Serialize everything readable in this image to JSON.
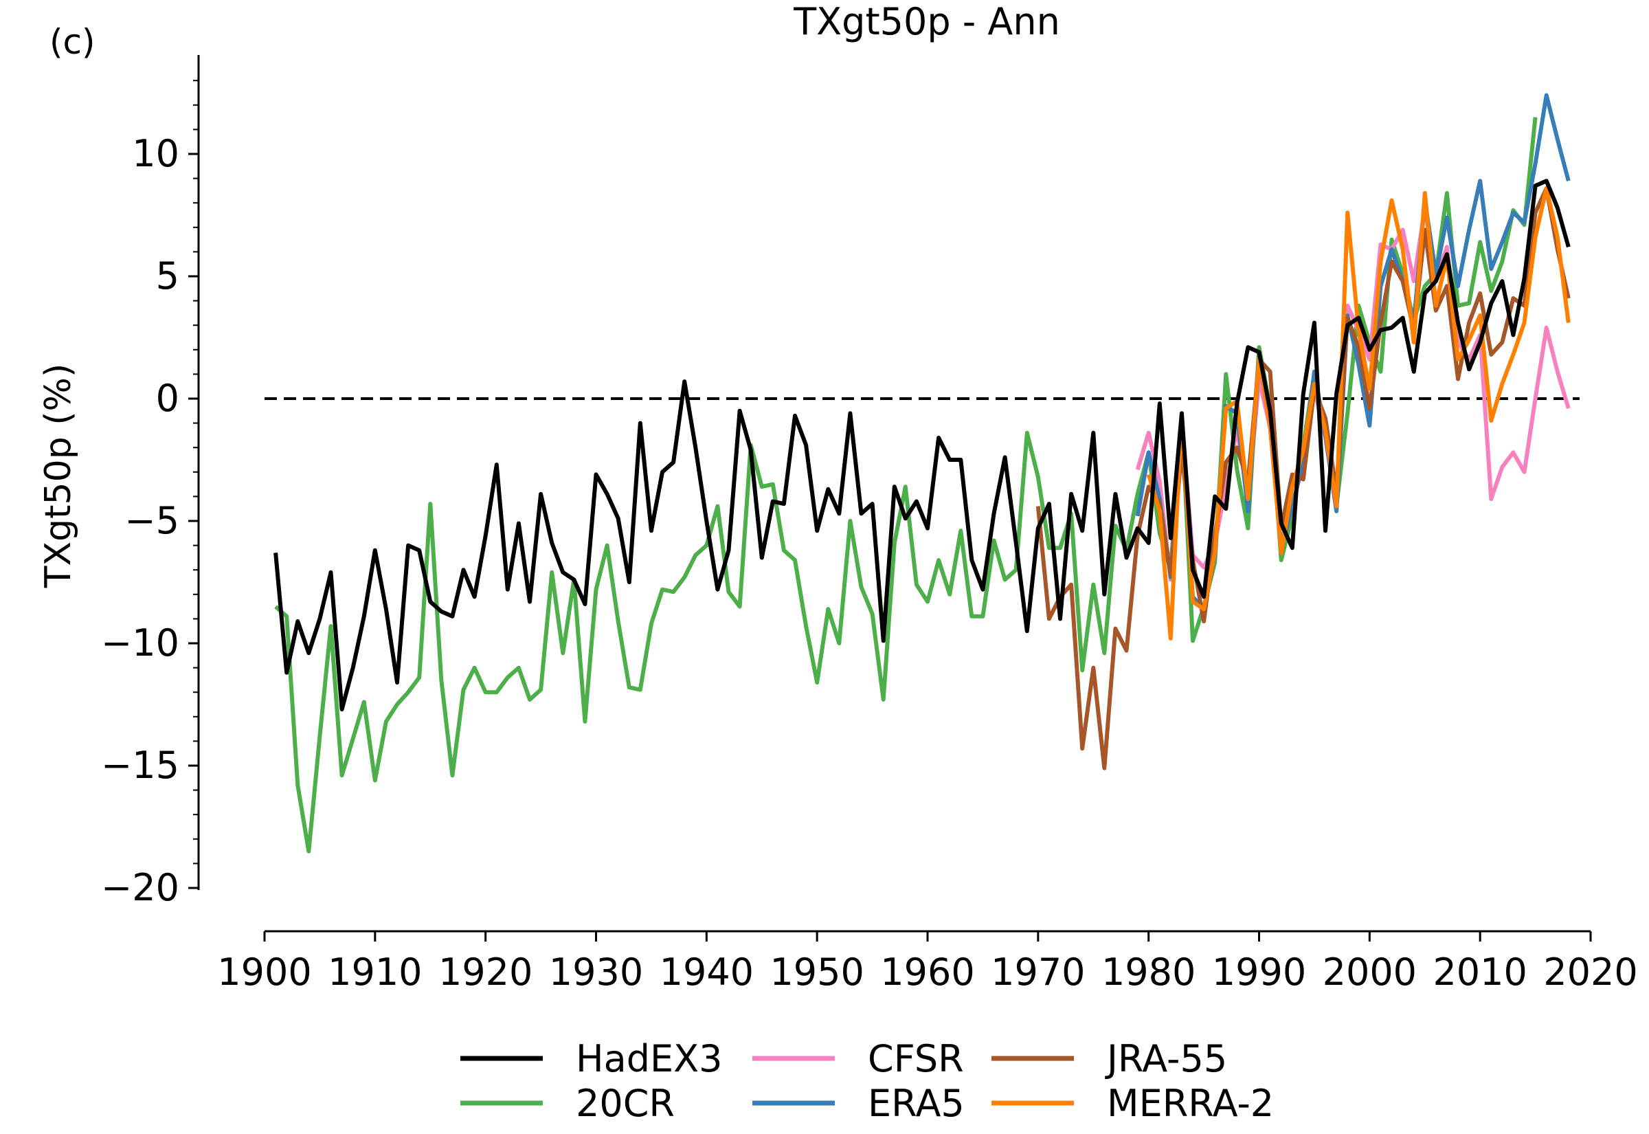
{
  "panel_label": "(c)",
  "chart_data": {
    "type": "line",
    "title": "TXgt50p - Ann",
    "xlabel": "",
    "ylabel": "TXgt50p (%)",
    "xlim": [
      1900,
      2020
    ],
    "ylim": [
      -22,
      14
    ],
    "xticks": [
      1900,
      1910,
      1920,
      1930,
      1940,
      1950,
      1960,
      1970,
      1980,
      1990,
      2000,
      2010,
      2020
    ],
    "yticks": [
      -20,
      -15,
      -10,
      -5,
      0,
      5,
      10
    ],
    "ytick_labels": [
      "−20",
      "−15",
      "−10",
      "−5",
      "0",
      "5",
      "10"
    ],
    "reference_line": 0,
    "legend_position": "bottom",
    "series": [
      {
        "name": "20CR",
        "color": "#4daf4a",
        "x": [
          1901,
          1902,
          1903,
          1904,
          1905,
          1906,
          1907,
          1908,
          1909,
          1910,
          1911,
          1912,
          1913,
          1914,
          1915,
          1916,
          1917,
          1918,
          1919,
          1920,
          1921,
          1922,
          1923,
          1924,
          1925,
          1926,
          1927,
          1928,
          1929,
          1930,
          1931,
          1932,
          1933,
          1934,
          1935,
          1936,
          1937,
          1938,
          1939,
          1940,
          1941,
          1942,
          1943,
          1944,
          1945,
          1946,
          1947,
          1948,
          1949,
          1950,
          1951,
          1952,
          1953,
          1954,
          1955,
          1956,
          1957,
          1958,
          1959,
          1960,
          1961,
          1962,
          1963,
          1964,
          1965,
          1966,
          1967,
          1968,
          1969,
          1970,
          1971,
          1972,
          1973,
          1974,
          1975,
          1976,
          1977,
          1978,
          1979,
          1980,
          1981,
          1982,
          1983,
          1984,
          1985,
          1986,
          1987,
          1988,
          1989,
          1990,
          1991,
          1992,
          1993,
          1994,
          1995,
          1996,
          1997,
          1998,
          1999,
          2000,
          2001,
          2002,
          2003,
          2004,
          2005,
          2006,
          2007,
          2008,
          2009,
          2010,
          2011,
          2012,
          2013,
          2014,
          2015
        ],
        "y": [
          -8.5,
          -8.9,
          -15.8,
          -18.5,
          -13.8,
          -9.3,
          -15.4,
          -13.9,
          -12.4,
          -15.6,
          -13.2,
          -12.5,
          -12,
          -11.4,
          -4.3,
          -11.5,
          -15.4,
          -11.9,
          -11,
          -12,
          -12,
          -11.4,
          -11,
          -12.3,
          -11.9,
          -7.1,
          -10.4,
          -7.4,
          -13.2,
          -7.8,
          -6,
          -9.1,
          -11.8,
          -11.9,
          -9.2,
          -7.8,
          -7.9,
          -7.3,
          -6.4,
          -6,
          -4.4,
          -7.9,
          -8.5,
          -1.9,
          -3.6,
          -3.5,
          -6.2,
          -6.6,
          -9.3,
          -11.6,
          -8.6,
          -10,
          -5,
          -7.7,
          -8.8,
          -12.3,
          -5.9,
          -3.6,
          -7.6,
          -8.3,
          -6.6,
          -8,
          -5.4,
          -8.9,
          -8.9,
          -5.8,
          -7.4,
          -7,
          -1.4,
          -3.2,
          -6.1,
          -6.1,
          -4.7,
          -11.1,
          -7.6,
          -10.4,
          -5.2,
          -6.2,
          -3.9,
          -2.2,
          -5.5,
          -7,
          -0.7,
          -9.9,
          -8.5,
          -6.7,
          1,
          -2.9,
          -5.3,
          2.1,
          -0.4,
          -6.6,
          -4.8,
          -1.9,
          1,
          -1.4,
          -4.4,
          -0.6,
          3.8,
          2.3,
          1.1,
          6.5,
          5.1,
          3.2,
          4.6,
          5.1,
          8.4,
          3.8,
          3.9,
          6.4,
          4.4,
          5.6,
          7.7,
          7.1,
          11.5
        ]
      },
      {
        "name": "CFSR",
        "color": "#f781bf",
        "x": [
          1979,
          1980,
          1981,
          1982,
          1983,
          1984,
          1985,
          1986,
          1987,
          1988,
          1989,
          1990,
          1991,
          1992,
          1993,
          1994,
          1995,
          1996,
          1997,
          1998,
          1999,
          2000,
          2001,
          2002,
          2003,
          2004,
          2005,
          2006,
          2007,
          2008,
          2009,
          2010,
          2011,
          2012,
          2013,
          2014,
          2015,
          2016,
          2017,
          2018
        ],
        "y": [
          -2.9,
          -1.4,
          -3.4,
          -7.4,
          -0.8,
          -6.4,
          -6.9,
          -5.9,
          -3.6,
          -1.2,
          -4.2,
          0.8,
          -1.2,
          -6.1,
          -3.6,
          -2.2,
          0.4,
          -1.6,
          -4.4,
          3.8,
          2.8,
          1.6,
          6.3,
          6.1,
          6.9,
          4.8,
          7.8,
          4.8,
          6.2,
          2.3,
          1.6,
          2.6,
          -4.1,
          -2.8,
          -2.2,
          -3,
          0,
          2.9,
          1.1,
          -0.4
        ]
      },
      {
        "name": "ERA5",
        "color": "#377eb8",
        "x": [
          1979,
          1980,
          1981,
          1982,
          1983,
          1984,
          1985,
          1986,
          1987,
          1988,
          1989,
          1990,
          1991,
          1992,
          1993,
          1994,
          1995,
          1996,
          1997,
          1998,
          1999,
          2000,
          2001,
          2002,
          2003,
          2004,
          2005,
          2006,
          2007,
          2008,
          2009,
          2010,
          2011,
          2012,
          2013,
          2014,
          2015,
          2016,
          2017,
          2018
        ],
        "y": [
          -4.8,
          -2.2,
          -4.1,
          -7.3,
          -1.2,
          -8.1,
          -8.6,
          -6.4,
          -0.3,
          -0.6,
          -4.6,
          1.6,
          -1.1,
          -6.1,
          -4.4,
          -2.6,
          1.1,
          -1.5,
          -4.6,
          3.4,
          1.4,
          -1.1,
          4.6,
          6.1,
          4.8,
          3.1,
          8.1,
          5.1,
          7.4,
          4.6,
          6.9,
          8.9,
          5.3,
          6.4,
          7.6,
          7.2,
          9.6,
          12.4,
          10.6,
          8.9
        ]
      },
      {
        "name": "JRA-55",
        "color": "#a65628",
        "x": [
          1970,
          1971,
          1972,
          1973,
          1974,
          1975,
          1976,
          1977,
          1978,
          1979,
          1980,
          1981,
          1982,
          1983,
          1984,
          1985,
          1986,
          1987,
          1988,
          1989,
          1990,
          1991,
          1992,
          1993,
          1994,
          1995,
          1996,
          1997,
          1998,
          1999,
          2000,
          2001,
          2002,
          2003,
          2004,
          2005,
          2006,
          2007,
          2008,
          2009,
          2010,
          2011,
          2012,
          2013,
          2014,
          2015,
          2016,
          2017,
          2018
        ],
        "y": [
          -4.4,
          -9,
          -8.1,
          -7.6,
          -14.3,
          -11,
          -15.1,
          -9.4,
          -10.3,
          -5.6,
          -3.6,
          -4.3,
          -7.2,
          -2.1,
          -6.6,
          -9.1,
          -5.6,
          -2.6,
          -2,
          -3.4,
          1.6,
          1.1,
          -5.3,
          -3.1,
          -3.3,
          0.4,
          -0.8,
          -3.8,
          3.3,
          2.1,
          -0.4,
          3.1,
          5.6,
          4.8,
          2.8,
          6.9,
          3.6,
          4.6,
          0.8,
          3.1,
          4.3,
          1.8,
          2.3,
          4.1,
          3.8,
          7.6,
          8.6,
          6.1,
          4.1
        ]
      },
      {
        "name": "MERRA-2",
        "color": "#ff7f00",
        "x": [
          1980,
          1981,
          1982,
          1983,
          1984,
          1985,
          1986,
          1987,
          1988,
          1989,
          1990,
          1991,
          1992,
          1993,
          1994,
          1995,
          1996,
          1997,
          1998,
          1999,
          2000,
          2001,
          2002,
          2003,
          2004,
          2005,
          2006,
          2007,
          2008,
          2009,
          2010,
          2011,
          2012,
          2013,
          2014,
          2015,
          2016,
          2017,
          2018
        ],
        "y": [
          -3.1,
          -4.6,
          -9.8,
          -0.6,
          -8.3,
          -8.6,
          -6.3,
          -0.4,
          -0.1,
          -4.1,
          1.6,
          -1.1,
          -6.3,
          -3.6,
          -2.1,
          0.6,
          -1.3,
          -4.4,
          7.6,
          2.8,
          0.4,
          5.6,
          8.1,
          6.1,
          2.3,
          8.4,
          3.8,
          5.8,
          1.6,
          2.4,
          3.4,
          -0.9,
          0.6,
          1.8,
          3.1,
          6.6,
          8.6,
          6.6,
          3.1
        ]
      },
      {
        "name": "HadEX3",
        "color": "#000000",
        "x": [
          1901,
          1902,
          1903,
          1904,
          1905,
          1906,
          1907,
          1908,
          1909,
          1910,
          1911,
          1912,
          1913,
          1914,
          1915,
          1916,
          1917,
          1918,
          1919,
          1920,
          1921,
          1922,
          1923,
          1924,
          1925,
          1926,
          1927,
          1928,
          1929,
          1930,
          1931,
          1932,
          1933,
          1934,
          1935,
          1936,
          1937,
          1938,
          1939,
          1940,
          1941,
          1942,
          1943,
          1944,
          1945,
          1946,
          1947,
          1948,
          1949,
          1950,
          1951,
          1952,
          1953,
          1954,
          1955,
          1956,
          1957,
          1958,
          1959,
          1960,
          1961,
          1962,
          1963,
          1964,
          1965,
          1966,
          1967,
          1968,
          1969,
          1970,
          1971,
          1972,
          1973,
          1974,
          1975,
          1976,
          1977,
          1978,
          1979,
          1980,
          1981,
          1982,
          1983,
          1984,
          1985,
          1986,
          1987,
          1988,
          1989,
          1990,
          1991,
          1992,
          1993,
          1994,
          1995,
          1996,
          1997,
          1998,
          1999,
          2000,
          2001,
          2002,
          2003,
          2004,
          2005,
          2006,
          2007,
          2008,
          2009,
          2010,
          2011,
          2012,
          2013,
          2014,
          2015,
          2016,
          2017,
          2018
        ],
        "y": [
          -6.3,
          -11.2,
          -9.1,
          -10.4,
          -9,
          -7.1,
          -12.7,
          -11,
          -8.9,
          -6.2,
          -8.6,
          -11.6,
          -6,
          -6.2,
          -8.3,
          -8.7,
          -8.9,
          -7,
          -8.1,
          -5.6,
          -2.7,
          -7.8,
          -5.1,
          -8.3,
          -3.9,
          -5.9,
          -7.1,
          -7.4,
          -8.4,
          -3.1,
          -3.9,
          -4.9,
          -7.5,
          -1,
          -5.4,
          -3,
          -2.6,
          0.7,
          -2,
          -5,
          -7.8,
          -6.2,
          -0.5,
          -2.1,
          -6.5,
          -4.2,
          -4.3,
          -0.7,
          -1.9,
          -5.4,
          -3.7,
          -4.7,
          -0.6,
          -4.7,
          -4.3,
          -9.9,
          -3.6,
          -4.9,
          -4.2,
          -5.3,
          -1.6,
          -2.5,
          -2.5,
          -6.6,
          -7.8,
          -4.7,
          -2.4,
          -5.9,
          -9.5,
          -5.3,
          -4.3,
          -9,
          -3.9,
          -5.4,
          -1.4,
          -8,
          -3.9,
          -6.5,
          -5.3,
          -5.9,
          -0.2,
          -5.7,
          -0.6,
          -7,
          -8.1,
          -4,
          -4.5,
          -0.2,
          2.1,
          1.9,
          -0.5,
          -5.1,
          -6.1,
          0.2,
          3.1,
          -5.4,
          0.2,
          3,
          3.3,
          2,
          2.8,
          2.9,
          3.3,
          1.1,
          4.3,
          4.8,
          5.9,
          3.1,
          1.2,
          2.3,
          3.9,
          4.8,
          2.6,
          4.9,
          8.7,
          8.9,
          7.8,
          6.2
        ]
      }
    ]
  },
  "legend": {
    "entries": [
      {
        "label": "HadEX3",
        "color": "#000000"
      },
      {
        "label": "20CR",
        "color": "#4daf4a"
      },
      {
        "label": "CFSR",
        "color": "#f781bf"
      },
      {
        "label": "ERA5",
        "color": "#377eb8"
      },
      {
        "label": "JRA-55",
        "color": "#a65628"
      },
      {
        "label": "MERRA-2",
        "color": "#ff7f00"
      }
    ]
  }
}
